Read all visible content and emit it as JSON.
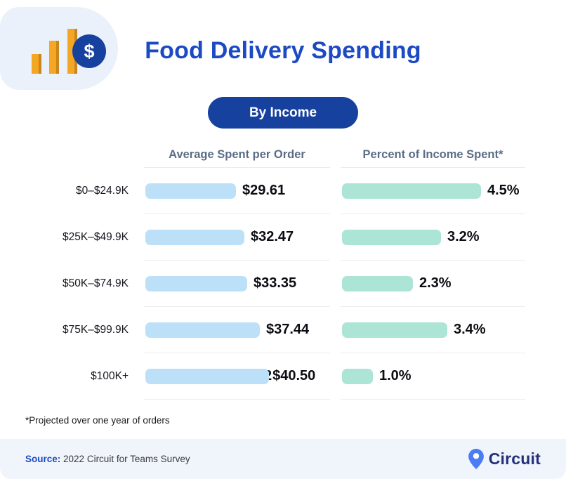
{
  "chart_data": {
    "type": "bar",
    "orientation": "horizontal",
    "title": "Food Delivery Spending",
    "subtitle": "By Income",
    "categories": [
      "$0–$24.9K",
      "$25K–$49.9K",
      "$50K–$74.9K",
      "$75K–$99.9K",
      "$100K+"
    ],
    "series": [
      {
        "name": "Average Spent per Order",
        "values": [
          29.61,
          32.47,
          33.35,
          37.44,
          40.5
        ],
        "labels": [
          "$29.61",
          "$32.47",
          "$33.35",
          "$37.44",
          "$40.50"
        ],
        "color": "#BCE0F8"
      },
      {
        "name": "Percent of Income Spent*",
        "values": [
          4.5,
          3.2,
          2.3,
          3.4,
          1.0
        ],
        "labels": [
          "4.5%",
          "3.2%",
          "2.3%",
          "3.4%",
          "1.0%"
        ],
        "color": "#ACE5D5"
      }
    ],
    "annotation": "*Projected over one year of orders",
    "artifact": {
      "row_index": 4,
      "series_index": 0,
      "text": "2"
    },
    "legend": "none",
    "grid": "row-separators-only"
  },
  "footer": {
    "source_label": "Source:",
    "source_text": "2022 Circuit for Teams Survey",
    "brand": "Circuit"
  },
  "icons": {
    "logo": "bar-chart-with-dollar-icon",
    "brand_pin": "location-pin-icon"
  },
  "colors": {
    "accent_blue": "#1C4AC4",
    "pill_blue": "#17419E",
    "bar_blue": "#BCE0F8",
    "bar_mint": "#ACE5D5",
    "gold": "#F3A724",
    "gold_dark": "#C8861C",
    "badge_bg": "#EAF1FB",
    "footer_bg": "#F0F4FB",
    "header_gray": "#5C6C87",
    "separator": "#ECECEC",
    "brand_navy": "#22307A",
    "pin_blue": "#4A7CF3"
  }
}
